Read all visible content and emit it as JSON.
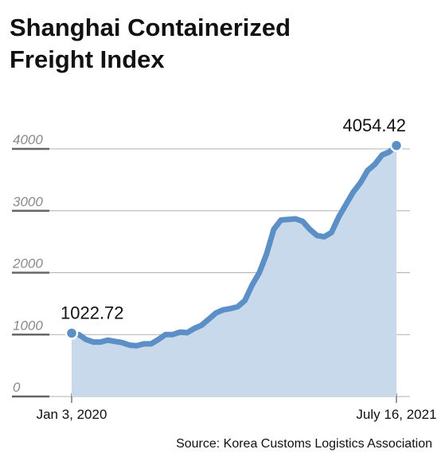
{
  "chart_data": {
    "type": "area",
    "title": [
      "Shanghai Containerized",
      "Freight Index"
    ],
    "source": "Source: Korea Customs Logistics Association",
    "categories": [
      "Jan 3, 2020",
      null,
      null,
      null,
      null,
      null,
      null,
      null,
      null,
      null,
      null,
      null,
      null,
      null,
      null,
      null,
      null,
      null,
      null,
      null,
      null,
      null,
      null,
      null,
      null,
      null,
      null,
      null,
      null,
      null,
      null,
      null,
      null,
      null,
      null,
      null,
      null,
      null,
      null,
      null,
      null,
      null,
      null,
      null,
      null,
      "July 16, 2021"
    ],
    "values": [
      1022.72,
      1000,
      920,
      880,
      880,
      910,
      890,
      870,
      830,
      820,
      850,
      850,
      920,
      1000,
      1000,
      1040,
      1030,
      1100,
      1150,
      1250,
      1350,
      1400,
      1420,
      1450,
      1550,
      1800,
      2000,
      2300,
      2700,
      2850,
      2860,
      2870,
      2830,
      2700,
      2600,
      2580,
      2650,
      2900,
      3100,
      3300,
      3450,
      3650,
      3750,
      3900,
      3950,
      4054.42
    ],
    "line_color": "#5b8fc6",
    "fill_color": "#c9d9ec",
    "ylim": [
      0,
      4000
    ],
    "yticks": [
      0,
      1000,
      2000,
      3000,
      4000
    ],
    "grid": true
  }
}
